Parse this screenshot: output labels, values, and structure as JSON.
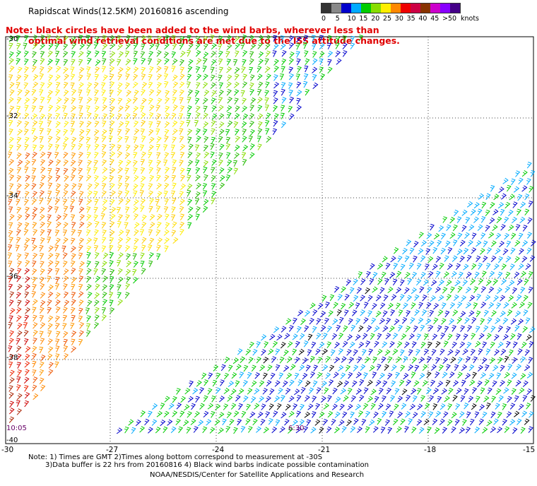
{
  "title": "Rapidscat Winds(12.5KM) 20160816 ascending",
  "note": {
    "line1": "Note: black circles have been added to the wind barbs, wherever less than",
    "line2": "optimal wind retrieval conditions are met due to the ISS attitude changes."
  },
  "legend": {
    "unit": "knots",
    "labels": [
      "0",
      "5",
      "10",
      "15",
      "20",
      "25",
      "30",
      "35",
      "40",
      "45",
      ">50"
    ],
    "colors": [
      "#333333",
      "#888888",
      "#0000cc",
      "#00aaff",
      "#00cc00",
      "#88dd00",
      "#ffee00",
      "#ff8800",
      "#ee0000",
      "#cc0044",
      "#883300",
      "#cc00cc",
      "#8800ff",
      "#440088"
    ]
  },
  "map": {
    "x_ticks": [
      "-30",
      "-27",
      "-24",
      "-21",
      "-18",
      "-15"
    ],
    "y_ticks": [
      "-30",
      "-32",
      "-34",
      "-36",
      "-38",
      "-40"
    ],
    "lon_range": [
      -30,
      -15
    ],
    "lat_range": [
      -40,
      -30
    ],
    "pass_times": [
      "10:05",
      "6:30"
    ]
  },
  "footnotes": {
    "line1": "Note: 1) Times are GMT 2)Times along bottom correspond to measurement at -30S",
    "line2": "3)Data buffer is 22 hrs from 20160816 4) Black wind barbs indicate possible contamination",
    "credit": "NOAA/NESDIS/Center for Satellite Applications and Research"
  }
}
